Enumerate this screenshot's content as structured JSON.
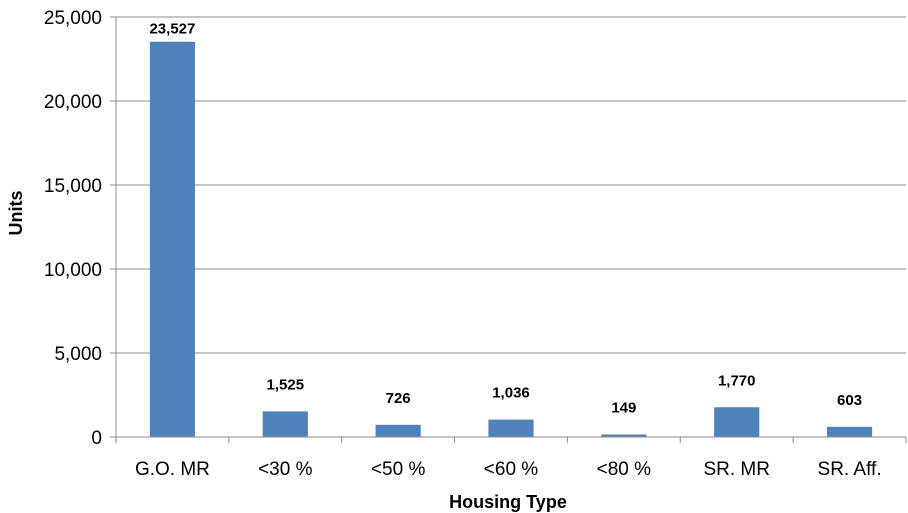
{
  "chart_data": {
    "type": "bar",
    "categories": [
      "G.O. MR",
      "<30 %",
      "<50 %",
      "<60 %",
      "<80 %",
      "SR. MR",
      "SR. Aff."
    ],
    "values": [
      23527,
      1525,
      726,
      1036,
      149,
      1770,
      603
    ],
    "data_labels": [
      "23,527",
      "1,525",
      "726",
      "1,036",
      "149",
      "1,770",
      "603"
    ],
    "title": "",
    "xlabel": "Housing Type",
    "ylabel": "Units",
    "ylim": [
      0,
      25000
    ],
    "yticks": [
      0,
      5000,
      10000,
      15000,
      20000,
      25000
    ],
    "ytick_labels": [
      "0",
      "5,000",
      "10,000",
      "15,000",
      "20,000",
      "25,000"
    ],
    "grid": true,
    "legend": "none",
    "colors": {
      "bar": "#4f81bd",
      "grid": "#8c8c8c",
      "axis": "#8c8c8c"
    }
  }
}
